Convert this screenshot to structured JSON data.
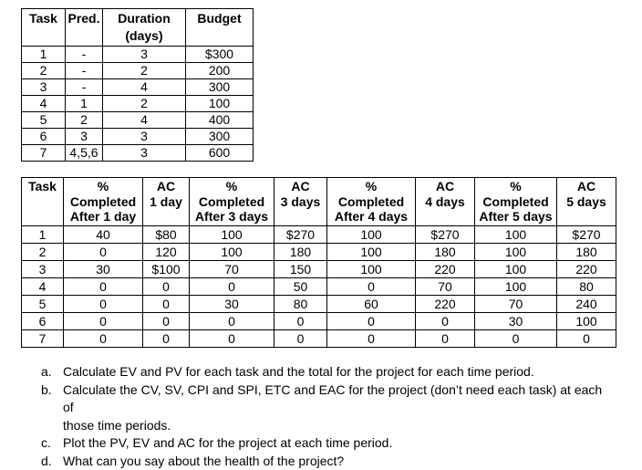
{
  "table1": {
    "headers": [
      "Task",
      "Pred.",
      "Duration\n(days)",
      "Budget"
    ],
    "rows": [
      [
        "1",
        "-",
        "3",
        "$300"
      ],
      [
        "2",
        "-",
        "2",
        "200"
      ],
      [
        "3",
        "-",
        "4",
        "300"
      ],
      [
        "4",
        "1",
        "2",
        "100"
      ],
      [
        "5",
        "2",
        "4",
        "400"
      ],
      [
        "6",
        "3",
        "3",
        "300"
      ],
      [
        "7",
        "4,5,6",
        "3",
        "600"
      ]
    ]
  },
  "table2": {
    "headers": [
      "Task",
      "%\nCompleted\nAfter 1 day",
      "AC\n1 day",
      "%\nCompleted\nAfter 3 days",
      "AC\n3 days",
      "%\nCompleted\nAfter 4 days",
      "AC\n4 days",
      "%\nCompleted\nAfter 5 days",
      "AC\n5 days"
    ],
    "rows": [
      [
        "1",
        "40",
        "$80",
        "100",
        "$270",
        "100",
        "$270",
        "100",
        "$270"
      ],
      [
        "2",
        "0",
        "120",
        "100",
        "180",
        "100",
        "180",
        "100",
        "180"
      ],
      [
        "3",
        "30",
        "$100",
        "70",
        "150",
        "100",
        "220",
        "100",
        "220"
      ],
      [
        "4",
        "0",
        "0",
        "0",
        "50",
        "0",
        "70",
        "100",
        "80"
      ],
      [
        "5",
        "0",
        "0",
        "30",
        "80",
        "60",
        "220",
        "70",
        "240"
      ],
      [
        "6",
        "0",
        "0",
        "0",
        "0",
        "0",
        "0",
        "30",
        "100"
      ],
      [
        "7",
        "0",
        "0",
        "0",
        "0",
        "0",
        "0",
        "0",
        "0"
      ]
    ]
  },
  "questions": {
    "items": [
      {
        "label": "a.",
        "text": "Calculate EV and PV for each task and the total for the project for each time period."
      },
      {
        "label": "b.",
        "text": "Calculate the CV, SV, CPI and SPI, ETC and EAC for the project (don’t need each task) at each of\nthose time periods."
      },
      {
        "label": "c.",
        "text": "Plot the PV, EV and AC for the project at each time period."
      },
      {
        "label": "d.",
        "text": "What can you say about the health of the project?"
      }
    ]
  }
}
